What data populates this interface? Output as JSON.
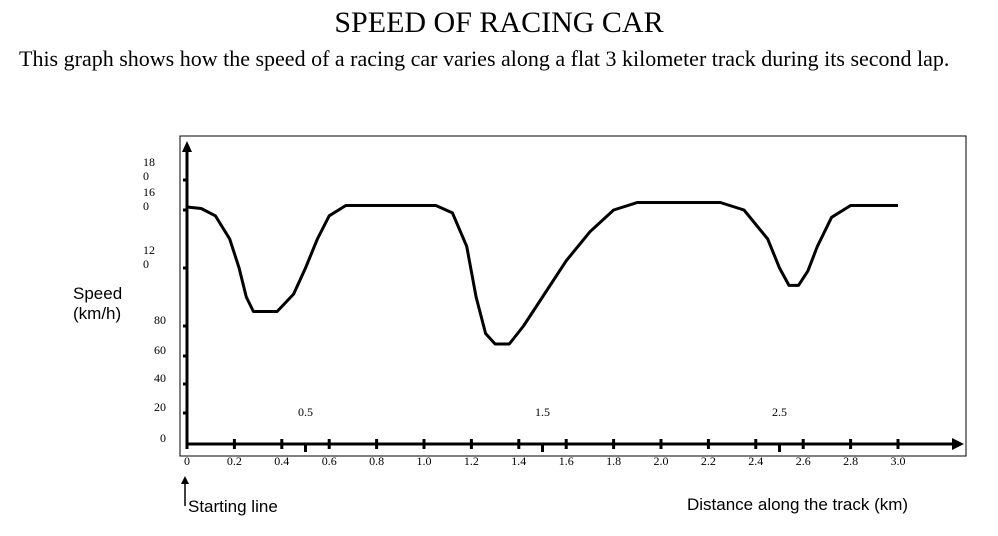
{
  "title": "SPEED OF RACING CAR",
  "description": "This graph shows how the speed of a racing car varies along a flat 3 kilometer track during its second lap.",
  "ylabel_line1": "Speed",
  "ylabel_line2": "(km/h)",
  "xlabel": "Distance along the track (km)",
  "start_label": "Starting line",
  "chart_data": {
    "type": "line",
    "title": "SPEED OF RACING CAR",
    "xlabel": "Distance along the track (km)",
    "ylabel": "Speed (km/h)",
    "xlim": [
      0,
      3.3
    ],
    "ylim": [
      0,
      200
    ],
    "grid": false,
    "x_ticks": [
      "0",
      "0.2",
      "0.4",
      "0.6",
      "0.8",
      "1.0",
      "1.2",
      "1.4",
      "1.6",
      "1.8",
      "2.0",
      "2.2",
      "2.4",
      "2.6",
      "2.8",
      "3.0"
    ],
    "x_tick_values": [
      0,
      0.2,
      0.4,
      0.6,
      0.8,
      1.0,
      1.2,
      1.4,
      1.6,
      1.8,
      2.0,
      2.2,
      2.4,
      2.6,
      2.8,
      3.0
    ],
    "x_mid_labels": [
      "0.5",
      "1.5",
      "2.5"
    ],
    "x_mid_values": [
      0.5,
      1.5,
      2.5
    ],
    "y_ticks": [
      "0",
      "20",
      "40",
      "60",
      "80",
      "12\n0",
      "16\n0",
      "18\n0"
    ],
    "y_tick_values": [
      0,
      20,
      40,
      60,
      80,
      120,
      160,
      180
    ],
    "series": [
      {
        "values": [
          [
            0,
            162
          ],
          [
            0.06,
            161
          ],
          [
            0.12,
            156
          ],
          [
            0.18,
            140
          ],
          [
            0.22,
            120
          ],
          [
            0.25,
            100
          ],
          [
            0.28,
            90
          ],
          [
            0.38,
            90
          ],
          [
            0.45,
            102
          ],
          [
            0.5,
            120
          ],
          [
            0.55,
            140
          ],
          [
            0.6,
            156
          ],
          [
            0.67,
            163
          ],
          [
            1.05,
            163
          ],
          [
            1.12,
            158
          ],
          [
            1.18,
            135
          ],
          [
            1.22,
            100
          ],
          [
            1.26,
            75
          ],
          [
            1.3,
            68
          ],
          [
            1.36,
            68
          ],
          [
            1.42,
            80
          ],
          [
            1.5,
            100
          ],
          [
            1.6,
            125
          ],
          [
            1.7,
            145
          ],
          [
            1.8,
            160
          ],
          [
            1.9,
            165
          ],
          [
            2.25,
            165
          ],
          [
            2.35,
            160
          ],
          [
            2.45,
            140
          ],
          [
            2.5,
            120
          ],
          [
            2.54,
            108
          ],
          [
            2.58,
            108
          ],
          [
            2.62,
            118
          ],
          [
            2.66,
            135
          ],
          [
            2.72,
            155
          ],
          [
            2.8,
            163
          ],
          [
            3.0,
            163
          ]
        ]
      }
    ]
  }
}
